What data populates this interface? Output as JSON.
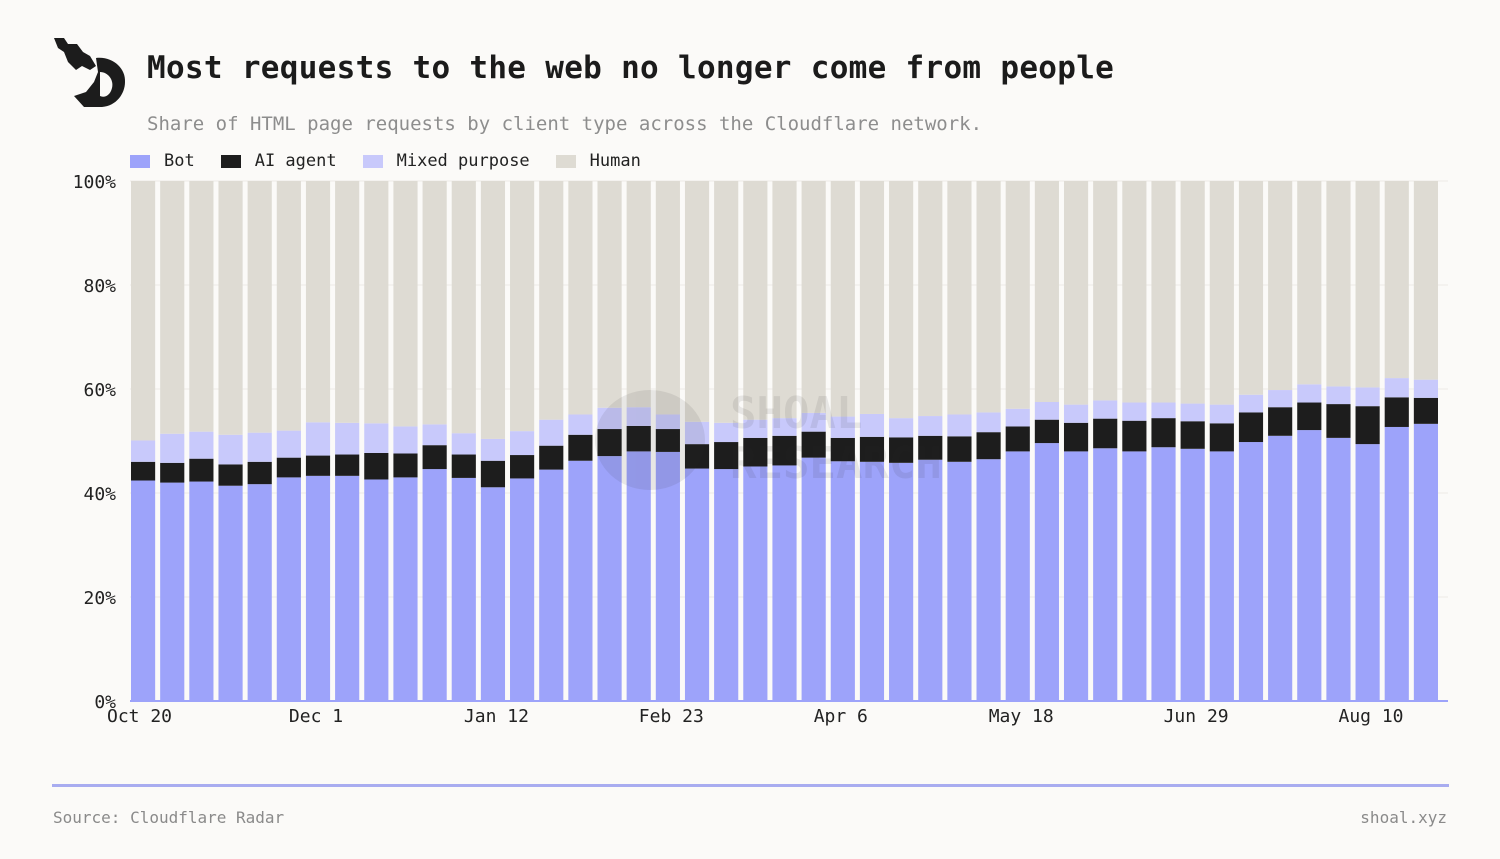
{
  "header": {
    "title": "Most requests to the web no longer come from people",
    "subtitle": "Share of HTML page requests by client type across the Cloudflare network."
  },
  "footer": {
    "source": "Source: Cloudflare Radar",
    "site": "shoal.xyz"
  },
  "watermark": "SHOAL RESEARCH",
  "colors": {
    "bot": "#9da3fa",
    "ai_agent": "#1d1d1d",
    "mixed_purpose": "#c8c9fb",
    "human": "#dedbd3",
    "background": "#fbfaf8"
  },
  "chart_data": {
    "type": "bar",
    "stacked": true,
    "ylim": [
      0,
      100
    ],
    "y_ticks": [
      0,
      20,
      40,
      60,
      80,
      100
    ],
    "y_tick_labels": [
      "0%",
      "20%",
      "40%",
      "60%",
      "80%",
      "100%"
    ],
    "x_tick_labels": [
      {
        "index": 0,
        "label": "Oct 20"
      },
      {
        "index": 6,
        "label": "Dec 1"
      },
      {
        "index": 12,
        "label": "Jan 12"
      },
      {
        "index": 18,
        "label": "Feb 23"
      },
      {
        "index": 24,
        "label": "Apr 6"
      },
      {
        "index": 30,
        "label": "May 18"
      },
      {
        "index": 36,
        "label": "Jun 29"
      },
      {
        "index": 42,
        "label": "Aug 10"
      }
    ],
    "legend": [
      {
        "name": "Bot",
        "color": "#9da3fa"
      },
      {
        "name": "AI agent",
        "color": "#1d1d1d"
      },
      {
        "name": "Mixed purpose",
        "color": "#c8c9fb"
      },
      {
        "name": "Human",
        "color": "#dedbd3"
      }
    ],
    "series": [
      {
        "name": "Bot",
        "values": [
          42.4,
          42.0,
          42.2,
          41.4,
          41.7,
          43.0,
          43.3,
          43.3,
          42.6,
          43.0,
          44.6,
          42.9,
          41.1,
          42.8,
          44.5,
          46.2,
          47.1,
          48.0,
          47.9,
          44.7,
          44.6,
          45.1,
          45.3,
          46.8,
          46.1,
          46.0,
          45.8,
          46.4,
          46.0,
          46.5,
          48.0,
          49.6,
          48.0,
          48.6,
          48.0,
          48.8,
          48.5,
          48.0,
          49.8,
          51.0,
          52.1,
          50.6,
          49.4,
          52.7,
          53.3
        ]
      },
      {
        "name": "AI agent",
        "values": [
          3.6,
          3.8,
          4.4,
          4.1,
          4.3,
          3.8,
          3.9,
          4.1,
          5.1,
          4.6,
          4.6,
          4.5,
          5.1,
          4.5,
          4.6,
          5.0,
          5.2,
          4.9,
          4.4,
          4.7,
          5.2,
          5.5,
          5.7,
          5.0,
          4.5,
          4.8,
          4.9,
          4.6,
          4.9,
          5.2,
          4.8,
          4.5,
          5.5,
          5.7,
          5.9,
          5.6,
          5.3,
          5.4,
          5.7,
          5.5,
          5.3,
          6.5,
          7.3,
          5.7,
          5.0
        ]
      },
      {
        "name": "Mixed purpose",
        "values": [
          4.1,
          5.6,
          5.2,
          5.7,
          5.6,
          5.2,
          6.4,
          6.1,
          5.7,
          5.2,
          4.0,
          4.1,
          4.2,
          4.6,
          5.0,
          3.9,
          4.1,
          3.6,
          2.8,
          4.3,
          3.7,
          3.5,
          3.4,
          3.6,
          4.1,
          4.4,
          3.7,
          3.8,
          4.2,
          3.8,
          3.4,
          3.4,
          3.5,
          3.5,
          3.5,
          3.0,
          3.4,
          3.6,
          3.4,
          3.3,
          3.5,
          3.4,
          3.6,
          3.7,
          3.5
        ]
      },
      {
        "name": "Human",
        "values": [
          49.9,
          48.6,
          48.2,
          48.8,
          48.4,
          48.0,
          46.4,
          46.5,
          46.6,
          47.2,
          46.8,
          48.5,
          49.6,
          48.1,
          45.9,
          44.9,
          43.6,
          43.5,
          44.9,
          46.3,
          46.5,
          45.9,
          45.6,
          44.6,
          45.3,
          44.8,
          45.6,
          45.2,
          44.9,
          44.5,
          43.8,
          42.5,
          43.0,
          42.2,
          42.6,
          42.6,
          42.8,
          43.0,
          41.1,
          40.2,
          39.1,
          39.5,
          39.7,
          37.9,
          38.2
        ]
      }
    ]
  }
}
